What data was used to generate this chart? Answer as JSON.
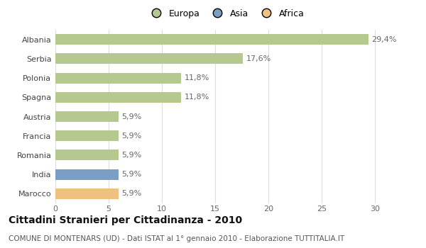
{
  "categories": [
    "Albania",
    "Serbia",
    "Polonia",
    "Spagna",
    "Austria",
    "Francia",
    "Romania",
    "India",
    "Marocco"
  ],
  "values": [
    29.4,
    17.6,
    11.8,
    11.8,
    5.9,
    5.9,
    5.9,
    5.9,
    5.9
  ],
  "labels": [
    "29,4%",
    "17,6%",
    "11,8%",
    "11,8%",
    "5,9%",
    "5,9%",
    "5,9%",
    "5,9%",
    "5,9%"
  ],
  "colors": [
    "#b5c98e",
    "#b5c98e",
    "#b5c98e",
    "#b5c98e",
    "#b5c98e",
    "#b5c98e",
    "#b5c98e",
    "#7a9fc2",
    "#f0c080"
  ],
  "legend": [
    {
      "label": "Europa",
      "color": "#b5c98e"
    },
    {
      "label": "Asia",
      "color": "#7a9fc2"
    },
    {
      "label": "Africa",
      "color": "#f0c080"
    }
  ],
  "xlim": [
    0,
    32
  ],
  "xticks": [
    0,
    5,
    10,
    15,
    20,
    25,
    30
  ],
  "title": "Cittadini Stranieri per Cittadinanza - 2010",
  "subtitle": "COMUNE DI MONTENARS (UD) - Dati ISTAT al 1° gennaio 2010 - Elaborazione TUTTITALIA.IT",
  "background_color": "#ffffff",
  "bar_edge_color": "none",
  "grid_color": "#dddddd",
  "title_fontsize": 10,
  "subtitle_fontsize": 7.5,
  "label_fontsize": 8,
  "tick_fontsize": 8,
  "legend_fontsize": 9
}
